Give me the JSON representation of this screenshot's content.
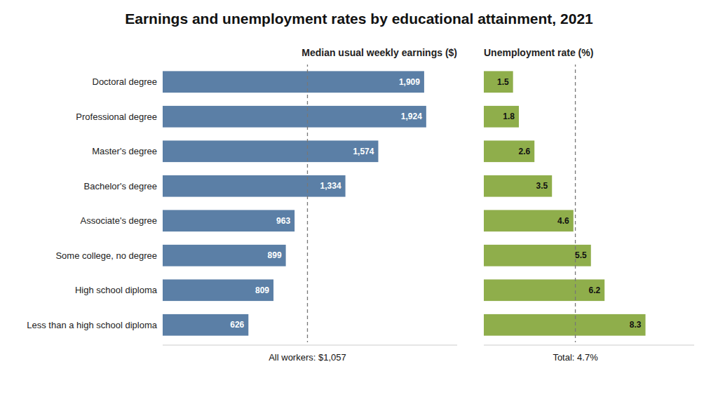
{
  "chart_data": [
    {
      "type": "bar",
      "orientation": "horizontal",
      "title": "Earnings and unemployment rates by educational attainment, 2021",
      "subtitle": "Median usual weekly earnings ($)",
      "categories": [
        "Doctoral degree",
        "Professional degree",
        "Master's degree",
        "Bachelor's degree",
        "Associate's degree",
        "Some college, no degree",
        "High school diploma",
        "Less than a high school diploma"
      ],
      "values": [
        1909,
        1924,
        1574,
        1334,
        963,
        899,
        809,
        626
      ],
      "value_labels": [
        "1,909",
        "1,924",
        "1,574",
        "1,334",
        "963",
        "899",
        "809",
        "626"
      ],
      "data_labels": true,
      "color": "#5b7fa6",
      "xlim": [
        0,
        2150
      ],
      "xticks": [],
      "grid": false,
      "tick_labels": "y",
      "annotations": [
        {
          "value": 1057,
          "label": "All workers: $1,057"
        }
      ]
    },
    {
      "type": "bar",
      "orientation": "horizontal",
      "subtitle": "Unemployment rate (%)",
      "categories": [
        "Doctoral degree",
        "Professional degree",
        "Master's degree",
        "Bachelor's degree",
        "Associate's degree",
        "Some college, no degree",
        "High school diploma",
        "Less than a high school diploma"
      ],
      "values": [
        1.5,
        1.8,
        2.6,
        3.5,
        4.6,
        5.5,
        6.2,
        8.3
      ],
      "data_labels": true,
      "color": "#8fae4b",
      "xlim": [
        0,
        10.8
      ],
      "xticks": [],
      "grid": false,
      "tick_labels": false,
      "annotations": [
        {
          "value": 4.7,
          "label": "Total: 4.7%"
        }
      ]
    }
  ]
}
